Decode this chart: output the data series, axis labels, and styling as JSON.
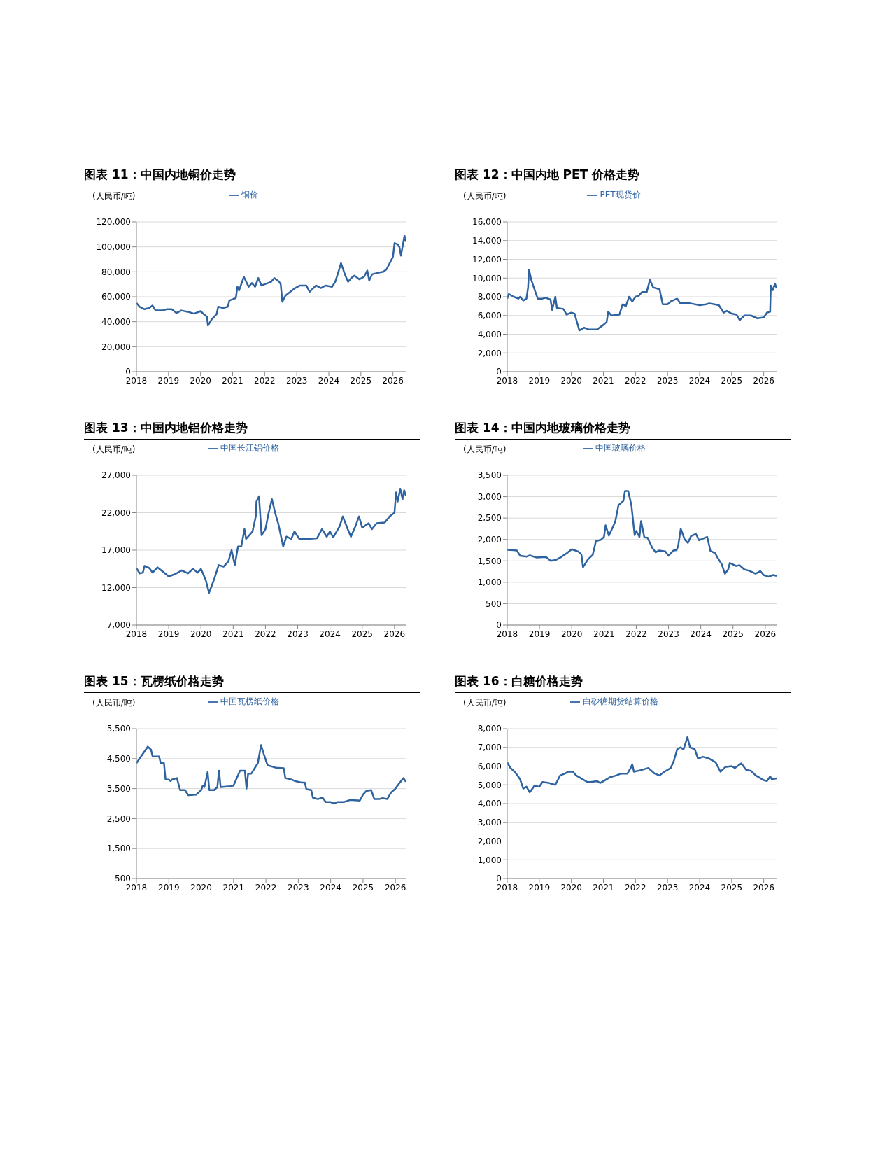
{
  "chart_data": [
    {
      "type": "line",
      "title": "图表 11：中国内地铜价走势",
      "ylabel": "(人民币/吨)",
      "legend": "top",
      "grid": "y",
      "marker": "none",
      "line_style": "solid",
      "xlim": [
        2018,
        2026.4
      ],
      "xticks": [
        2018,
        2019,
        2020,
        2021,
        2022,
        2023,
        2024,
        2025,
        2026
      ],
      "ylim": [
        0,
        120000
      ],
      "yticks": [
        {
          "value": 0,
          "label": "0"
        },
        {
          "value": 20000,
          "label": "20,000"
        },
        {
          "value": 40000,
          "label": "40,000"
        },
        {
          "value": 60000,
          "label": "60,000"
        },
        {
          "value": 80000,
          "label": "80,000"
        },
        {
          "value": 100000,
          "label": "100,000"
        },
        {
          "value": 120000,
          "label": "120,000"
        }
      ],
      "series": [
        {
          "name": "铜价",
          "color": "#2e63a0",
          "x": [
            2018.0,
            2018.1,
            2018.25,
            2018.4,
            2018.5,
            2018.6,
            2018.8,
            2018.95,
            2019.1,
            2019.25,
            2019.4,
            2019.6,
            2019.8,
            2020.0,
            2020.1,
            2020.2,
            2020.23,
            2020.35,
            2020.5,
            2020.55,
            2020.7,
            2020.85,
            2020.9,
            2021.0,
            2021.1,
            2021.15,
            2021.2,
            2021.35,
            2021.5,
            2021.6,
            2021.7,
            2021.8,
            2021.9,
            2022.0,
            2022.2,
            2022.3,
            2022.45,
            2022.5,
            2022.55,
            2022.65,
            2022.8,
            2022.95,
            2023.1,
            2023.3,
            2023.4,
            2023.6,
            2023.75,
            2023.9,
            2024.1,
            2024.2,
            2024.3,
            2024.38,
            2024.5,
            2024.6,
            2024.7,
            2024.8,
            2024.95,
            2025.1,
            2025.2,
            2025.26,
            2025.35,
            2025.5,
            2025.7,
            2025.8,
            2025.9,
            2026.0,
            2026.05,
            2026.15,
            2026.2,
            2026.25,
            2026.32,
            2026.36,
            2026.4
          ],
          "values": [
            55000,
            52000,
            50000,
            51000,
            53000,
            49000,
            49000,
            50000,
            50000,
            47000,
            49000,
            48000,
            46500,
            48500,
            46000,
            44000,
            37000,
            42000,
            46000,
            52000,
            51000,
            52000,
            57000,
            58000,
            59000,
            68000,
            65000,
            76000,
            68000,
            71000,
            68000,
            75000,
            69000,
            70000,
            72000,
            75000,
            72000,
            70000,
            56000,
            61000,
            64000,
            67000,
            69000,
            69000,
            64000,
            69000,
            67000,
            69000,
            68000,
            72000,
            80000,
            87000,
            78000,
            72000,
            75000,
            77000,
            74000,
            76000,
            81000,
            73000,
            78000,
            79000,
            80000,
            82000,
            87000,
            92000,
            103000,
            102000,
            100000,
            93000,
            103000,
            109000,
            104000
          ]
        }
      ]
    },
    {
      "type": "line",
      "title": "图表 12：中国内地 PET 价格走势",
      "ylabel": "(人民币/吨)",
      "legend": "top",
      "grid": "y",
      "marker": "none",
      "line_style": "solid",
      "xlim": [
        2018,
        2026.4
      ],
      "xticks": [
        2018,
        2019,
        2020,
        2021,
        2022,
        2023,
        2024,
        2025,
        2026
      ],
      "ylim": [
        0,
        16000
      ],
      "yticks": [
        {
          "value": 0,
          "label": "0"
        },
        {
          "value": 2000,
          "label": "2,000"
        },
        {
          "value": 4000,
          "label": "4,000"
        },
        {
          "value": 6000,
          "label": "6,000"
        },
        {
          "value": 8000,
          "label": "8,000"
        },
        {
          "value": 10000,
          "label": "10,000"
        },
        {
          "value": 12000,
          "label": "12,000"
        },
        {
          "value": 14000,
          "label": "14,000"
        },
        {
          "value": 16000,
          "label": "16,000"
        }
      ],
      "series": [
        {
          "name": "PET现货价",
          "color": "#2e63a0",
          "x": [
            2018.0,
            2018.05,
            2018.2,
            2018.35,
            2018.4,
            2018.5,
            2018.6,
            2018.65,
            2018.68,
            2018.75,
            2018.85,
            2018.95,
            2019.1,
            2019.2,
            2019.35,
            2019.4,
            2019.5,
            2019.55,
            2019.75,
            2019.85,
            2020.0,
            2020.1,
            2020.25,
            2020.4,
            2020.55,
            2020.8,
            2021.0,
            2021.1,
            2021.15,
            2021.25,
            2021.5,
            2021.6,
            2021.7,
            2021.8,
            2021.9,
            2022.0,
            2022.1,
            2022.2,
            2022.35,
            2022.45,
            2022.55,
            2022.75,
            2022.85,
            2023.0,
            2023.1,
            2023.3,
            2023.4,
            2023.7,
            2024.0,
            2024.2,
            2024.3,
            2024.6,
            2024.75,
            2024.85,
            2025.0,
            2025.15,
            2025.25,
            2025.4,
            2025.6,
            2025.8,
            2026.0,
            2026.1,
            2026.2,
            2026.22,
            2026.28,
            2026.35,
            2026.4
          ],
          "values": [
            7800,
            8300,
            8000,
            7800,
            8000,
            7600,
            7800,
            9000,
            10900,
            9800,
            8800,
            7800,
            7800,
            7900,
            7700,
            6600,
            8000,
            6800,
            6700,
            6100,
            6300,
            6200,
            4400,
            4700,
            4500,
            4500,
            5000,
            5300,
            6400,
            6000,
            6100,
            7200,
            7000,
            8000,
            7500,
            8000,
            8100,
            8500,
            8500,
            9800,
            9000,
            8800,
            7200,
            7200,
            7500,
            7800,
            7300,
            7300,
            7100,
            7200,
            7300,
            7100,
            6300,
            6500,
            6200,
            6100,
            5500,
            6000,
            6000,
            5700,
            5800,
            6300,
            6400,
            9200,
            8700,
            9400,
            8900
          ]
        }
      ]
    },
    {
      "type": "line",
      "title": "图表 13：中国内地铝价格走势",
      "ylabel": "(人民币/吨)",
      "legend": "top",
      "grid": "y",
      "marker": "none",
      "line_style": "solid",
      "xlim": [
        2018,
        2026.35
      ],
      "xticks": [
        2018,
        2019,
        2020,
        2021,
        2022,
        2023,
        2024,
        2025,
        2026
      ],
      "ylim": [
        7000,
        27000
      ],
      "yticks": [
        {
          "value": 7000,
          "label": "7,000"
        },
        {
          "value": 12000,
          "label": "12,000"
        },
        {
          "value": 17000,
          "label": "17,000"
        },
        {
          "value": 22000,
          "label": "22,000"
        },
        {
          "value": 27000,
          "label": "27,000"
        }
      ],
      "series": [
        {
          "name": "中国长江铝价格",
          "color": "#2e63a0",
          "x": [
            2018.0,
            2018.1,
            2018.2,
            2018.25,
            2018.4,
            2018.5,
            2018.65,
            2018.8,
            2019.0,
            2019.2,
            2019.4,
            2019.6,
            2019.75,
            2019.9,
            2020.0,
            2020.15,
            2020.25,
            2020.4,
            2020.55,
            2020.7,
            2020.85,
            2020.95,
            2021.05,
            2021.15,
            2021.25,
            2021.35,
            2021.4,
            2021.6,
            2021.7,
            2021.72,
            2021.8,
            2021.88,
            2022.0,
            2022.1,
            2022.2,
            2022.3,
            2022.4,
            2022.55,
            2022.65,
            2022.8,
            2022.9,
            2023.05,
            2023.3,
            2023.6,
            2023.75,
            2023.9,
            2024.0,
            2024.1,
            2024.3,
            2024.4,
            2024.55,
            2024.65,
            2024.8,
            2024.9,
            2025.0,
            2025.2,
            2025.3,
            2025.45,
            2025.7,
            2025.85,
            2026.0,
            2026.05,
            2026.1,
            2026.18,
            2026.25,
            2026.3,
            2026.35
          ],
          "values": [
            14600,
            13900,
            14000,
            14900,
            14600,
            14000,
            14700,
            14200,
            13500,
            13800,
            14300,
            13900,
            14500,
            14000,
            14500,
            13000,
            11300,
            13000,
            15000,
            14800,
            15500,
            17000,
            15000,
            17500,
            17500,
            19800,
            18500,
            19500,
            21500,
            23500,
            24200,
            19000,
            19800,
            22000,
            23800,
            22000,
            20500,
            17500,
            18800,
            18500,
            19500,
            18500,
            18500,
            18600,
            19800,
            18800,
            19500,
            18700,
            20200,
            21500,
            19800,
            18800,
            20300,
            21500,
            20000,
            20600,
            19800,
            20600,
            20700,
            21500,
            22000,
            24700,
            23500,
            25200,
            23800,
            25000,
            24300
          ]
        }
      ]
    },
    {
      "type": "line",
      "title": "图表 14：中国内地玻璃价格走势",
      "ylabel": "(人民币/吨)",
      "legend": "top",
      "grid": "y",
      "marker": "none",
      "line_style": "solid",
      "xlim": [
        2018,
        2026.35
      ],
      "xticks": [
        2018,
        2019,
        2020,
        2021,
        2022,
        2023,
        2024,
        2025,
        2026
      ],
      "ylim": [
        0,
        3500
      ],
      "yticks": [
        {
          "value": 0,
          "label": "0"
        },
        {
          "value": 500,
          "label": "500"
        },
        {
          "value": 1000,
          "label": "1,000"
        },
        {
          "value": 1500,
          "label": "1,500"
        },
        {
          "value": 2000,
          "label": "2,000"
        },
        {
          "value": 2500,
          "label": "2,500"
        },
        {
          "value": 3000,
          "label": "3,000"
        },
        {
          "value": 3500,
          "label": "3,500"
        }
      ],
      "series": [
        {
          "name": "中国玻璃价格",
          "color": "#2e63a0",
          "x": [
            2018.0,
            2018.2,
            2018.3,
            2018.4,
            2018.6,
            2018.7,
            2018.9,
            2019.2,
            2019.35,
            2019.5,
            2019.65,
            2019.85,
            2020.0,
            2020.2,
            2020.3,
            2020.35,
            2020.5,
            2020.65,
            2020.75,
            2020.9,
            2021.0,
            2021.05,
            2021.15,
            2021.25,
            2021.35,
            2021.45,
            2021.6,
            2021.65,
            2021.75,
            2021.85,
            2021.95,
            2022.0,
            2022.1,
            2022.15,
            2022.25,
            2022.35,
            2022.5,
            2022.6,
            2022.7,
            2022.9,
            2023.0,
            2023.15,
            2023.25,
            2023.3,
            2023.38,
            2023.5,
            2023.6,
            2023.7,
            2023.85,
            2023.95,
            2024.1,
            2024.2,
            2024.3,
            2024.45,
            2024.5,
            2024.65,
            2024.75,
            2024.85,
            2024.9,
            2025.1,
            2025.2,
            2025.35,
            2025.5,
            2025.7,
            2025.85,
            2025.95,
            2026.1,
            2026.25,
            2026.35
          ],
          "values": [
            1760,
            1750,
            1740,
            1620,
            1600,
            1630,
            1580,
            1590,
            1500,
            1520,
            1580,
            1680,
            1770,
            1720,
            1650,
            1350,
            1530,
            1640,
            1960,
            1990,
            2060,
            2330,
            2090,
            2250,
            2420,
            2800,
            2900,
            3130,
            3130,
            2800,
            2100,
            2200,
            2060,
            2430,
            2050,
            2040,
            1800,
            1700,
            1740,
            1720,
            1620,
            1740,
            1750,
            1850,
            2250,
            2000,
            1920,
            2080,
            2130,
            1980,
            2030,
            2060,
            1730,
            1680,
            1600,
            1420,
            1200,
            1300,
            1450,
            1380,
            1400,
            1300,
            1270,
            1200,
            1260,
            1170,
            1130,
            1170,
            1150
          ]
        }
      ]
    },
    {
      "type": "line",
      "title": "图表 15：瓦楞纸价格走势",
      "ylabel": "(人民币/吨)",
      "legend": "top",
      "grid": "y",
      "marker": "none",
      "line_style": "solid",
      "xlim": [
        2018,
        2026.32
      ],
      "xticks": [
        2018,
        2019,
        2020,
        2021,
        2022,
        2023,
        2024,
        2025,
        2026
      ],
      "ylim": [
        500,
        5500
      ],
      "yticks": [
        {
          "value": 500,
          "label": "500"
        },
        {
          "value": 1500,
          "label": "1,500"
        },
        {
          "value": 2500,
          "label": "2,500"
        },
        {
          "value": 3500,
          "label": "3,500"
        },
        {
          "value": 4500,
          "label": "4,500"
        },
        {
          "value": 5500,
          "label": "5,500"
        }
      ],
      "series": [
        {
          "name": "中国瓦楞纸价格",
          "color": "#2e63a0",
          "x": [
            2018.0,
            2018.35,
            2018.45,
            2018.5,
            2018.7,
            2018.75,
            2018.85,
            2018.9,
            2019.0,
            2019.05,
            2019.1,
            2019.25,
            2019.35,
            2019.5,
            2019.6,
            2019.85,
            2020.0,
            2020.05,
            2020.1,
            2020.2,
            2020.25,
            2020.4,
            2020.5,
            2020.55,
            2020.6,
            2020.9,
            2021.0,
            2021.2,
            2021.35,
            2021.4,
            2021.45,
            2021.55,
            2021.75,
            2021.85,
            2021.95,
            2022.05,
            2022.3,
            2022.55,
            2022.6,
            2022.8,
            2022.9,
            2023.1,
            2023.2,
            2023.25,
            2023.4,
            2023.45,
            2023.6,
            2023.75,
            2023.85,
            2024.0,
            2024.1,
            2024.2,
            2024.4,
            2024.6,
            2024.9,
            2025.0,
            2025.1,
            2025.25,
            2025.35,
            2025.5,
            2025.6,
            2025.75,
            2025.85,
            2026.0,
            2026.1,
            2026.25,
            2026.32
          ],
          "values": [
            4350,
            4900,
            4800,
            4570,
            4570,
            4350,
            4350,
            3800,
            3800,
            3750,
            3800,
            3850,
            3450,
            3450,
            3280,
            3300,
            3450,
            3600,
            3550,
            4050,
            3450,
            3450,
            3550,
            4100,
            3550,
            3580,
            3600,
            4100,
            4100,
            3500,
            4000,
            4000,
            4350,
            4950,
            4600,
            4280,
            4200,
            4180,
            3850,
            3800,
            3750,
            3700,
            3700,
            3480,
            3450,
            3200,
            3150,
            3200,
            3050,
            3050,
            3000,
            3050,
            3050,
            3120,
            3100,
            3300,
            3420,
            3450,
            3150,
            3150,
            3180,
            3150,
            3350,
            3500,
            3650,
            3850,
            3730
          ]
        }
      ]
    },
    {
      "type": "line",
      "title": "图表 16：白糖价格走势",
      "ylabel": "(人民币/吨)",
      "legend": "top",
      "grid": "y",
      "marker": "none",
      "line_style": "solid",
      "xlim": [
        2018,
        2026.4
      ],
      "xticks": [
        2018,
        2019,
        2020,
        2021,
        2022,
        2023,
        2024,
        2025,
        2026
      ],
      "ylim": [
        0,
        8000
      ],
      "yticks": [
        {
          "value": 0,
          "label": "0"
        },
        {
          "value": 1000,
          "label": "1,000"
        },
        {
          "value": 2000,
          "label": "2,000"
        },
        {
          "value": 3000,
          "label": "3,000"
        },
        {
          "value": 4000,
          "label": "4,000"
        },
        {
          "value": 5000,
          "label": "5,000"
        },
        {
          "value": 6000,
          "label": "6,000"
        },
        {
          "value": 7000,
          "label": "7,000"
        },
        {
          "value": 8000,
          "label": "8,000"
        }
      ],
      "series": [
        {
          "name": "白砂糖期货结算价格",
          "color": "#2e63a0",
          "x": [
            2018.0,
            2018.1,
            2018.2,
            2018.3,
            2018.4,
            2018.5,
            2018.6,
            2018.7,
            2018.85,
            2019.0,
            2019.1,
            2019.3,
            2019.5,
            2019.65,
            2019.8,
            2019.9,
            2020.05,
            2020.15,
            2020.3,
            2020.5,
            2020.6,
            2020.8,
            2020.9,
            2021.05,
            2021.2,
            2021.4,
            2021.55,
            2021.75,
            2021.85,
            2021.9,
            2021.95,
            2022.2,
            2022.4,
            2022.6,
            2022.75,
            2022.9,
            2023.1,
            2023.2,
            2023.3,
            2023.4,
            2023.5,
            2023.62,
            2023.7,
            2023.85,
            2023.95,
            2024.1,
            2024.3,
            2024.5,
            2024.65,
            2024.8,
            2025.0,
            2025.1,
            2025.3,
            2025.45,
            2025.6,
            2025.75,
            2025.9,
            2026.0,
            2026.1,
            2026.2,
            2026.25,
            2026.4
          ],
          "values": [
            6200,
            5900,
            5750,
            5550,
            5300,
            4800,
            4900,
            4600,
            4950,
            4900,
            5150,
            5100,
            5000,
            5500,
            5600,
            5700,
            5700,
            5500,
            5350,
            5150,
            5150,
            5200,
            5100,
            5250,
            5400,
            5500,
            5600,
            5600,
            5900,
            6100,
            5700,
            5800,
            5900,
            5600,
            5500,
            5700,
            5900,
            6300,
            6900,
            7000,
            6900,
            7550,
            7000,
            6900,
            6400,
            6500,
            6400,
            6200,
            5700,
            5950,
            6000,
            5900,
            6150,
            5800,
            5750,
            5500,
            5350,
            5250,
            5200,
            5450,
            5300,
            5350
          ]
        }
      ]
    }
  ]
}
